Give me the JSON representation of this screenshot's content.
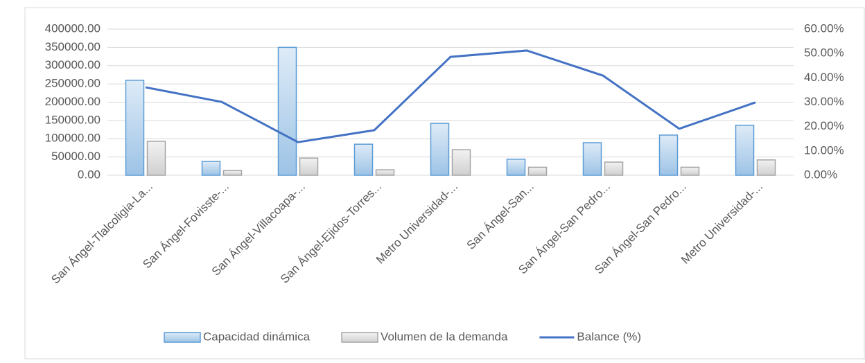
{
  "chart_data": {
    "type": "bar",
    "categories": [
      "San Ángel-Tlalcoligia-La...",
      "San Ángel-Fovisste-...",
      "San Ángel-Villacoapa-...",
      "San Ángel-Ejidos-Torres...",
      "Metro Universidad-...",
      "San Ángel-San...",
      "San Ángel-San Pedro...",
      "San Ángel-San Pedro...",
      "Metro Universidad-..."
    ],
    "series": [
      {
        "name": "Capacidad dinámica",
        "type": "bar",
        "color": "#5b9bd5",
        "values": [
          260000,
          38000,
          350000,
          85000,
          142000,
          44000,
          89000,
          110000,
          137000
        ]
      },
      {
        "name": "Volumen de la demanda",
        "type": "bar",
        "color": "#a5a5a5",
        "values": [
          93000,
          13000,
          47000,
          15000,
          70000,
          22000,
          36000,
          22000,
          42000
        ]
      },
      {
        "name": "Balance (%)",
        "type": "line",
        "axis": "y2",
        "color": "#4472c4",
        "values": [
          36.1,
          30.1,
          13.6,
          18.5,
          48.6,
          51.2,
          40.9,
          19.1,
          29.9
        ]
      }
    ],
    "ylim": [
      0,
      400000
    ],
    "yticks": [
      {
        "value": 0,
        "label": "0.00"
      },
      {
        "value": 50000,
        "label": "50000.00"
      },
      {
        "value": 100000,
        "label": "100000.00"
      },
      {
        "value": 150000,
        "label": "150000.00"
      },
      {
        "value": 200000,
        "label": "200000.00"
      },
      {
        "value": 250000,
        "label": "250000.00"
      },
      {
        "value": 300000,
        "label": "300000.00"
      },
      {
        "value": 350000,
        "label": "350000.00"
      },
      {
        "value": 400000,
        "label": "400000.00"
      }
    ],
    "y2lim": [
      0,
      60
    ],
    "y2ticks": [
      {
        "value": 0,
        "label": "0.00%"
      },
      {
        "value": 10,
        "label": "10.00%"
      },
      {
        "value": 20,
        "label": "20.00%"
      },
      {
        "value": 30,
        "label": "30.00%"
      },
      {
        "value": 40,
        "label": "40.00%"
      },
      {
        "value": 50,
        "label": "50.00%"
      },
      {
        "value": 60,
        "label": "60.00%"
      }
    ],
    "grid": true,
    "legend": "bottom"
  }
}
